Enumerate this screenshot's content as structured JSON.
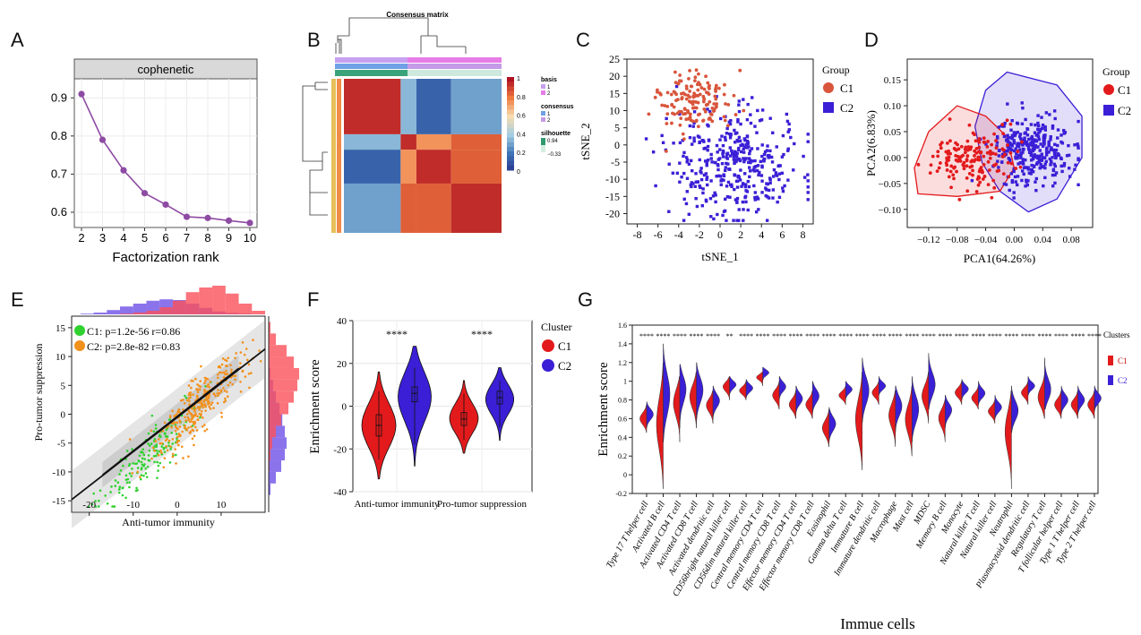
{
  "panel_labels": [
    "A",
    "B",
    "C",
    "D",
    "E",
    "F",
    "G"
  ],
  "chart_data": [
    {
      "panel": "A",
      "type": "line",
      "strip_label": "cophenetic",
      "xlabel": "Factorization rank",
      "x": [
        2,
        3,
        4,
        5,
        6,
        7,
        8,
        9,
        10
      ],
      "values": [
        0.91,
        0.79,
        0.71,
        0.65,
        0.62,
        0.588,
        0.585,
        0.578,
        0.572
      ],
      "xlim": [
        2,
        10
      ],
      "ylim": [
        0.56,
        0.95
      ],
      "yticks": [
        0.6,
        0.7,
        0.8,
        0.9
      ],
      "yticklabels": [
        "0.6",
        "0.7",
        "0.8",
        "0.9"
      ],
      "color": "#8e4ba3",
      "grid": true
    },
    {
      "panel": "B",
      "type": "heatmap",
      "title": "Consensus matrix",
      "legend": {
        "colorbar_ticks": [
          "1",
          "0.8",
          "0.6",
          "0.4",
          "0.2",
          "0"
        ],
        "basis_title": "basis",
        "basis_items": [
          "1",
          "2"
        ],
        "consensus_title": "consensus",
        "consensus_items": [
          "1",
          "2"
        ],
        "silhouette_title": "silhouette",
        "silhouette_values": [
          "0.94",
          "−0.33"
        ]
      },
      "blocks_rows": [
        0.36,
        0.1,
        0.22,
        0.32
      ],
      "blocks_cols": [
        0.36,
        0.1,
        0.22,
        0.32
      ],
      "matrix": [
        [
          0.95,
          0.35,
          0.15,
          0.3
        ],
        [
          0.35,
          0.95,
          0.75,
          0.85
        ],
        [
          0.15,
          0.75,
          0.95,
          0.85
        ],
        [
          0.3,
          0.85,
          0.85,
          0.95
        ]
      ]
    },
    {
      "panel": "C",
      "type": "scatter",
      "xlabel": "tSNE_1",
      "ylabel": "tSNE_2",
      "xlim": [
        -9,
        9
      ],
      "ylim": [
        -23,
        25
      ],
      "xticks": [
        -8,
        -6,
        -4,
        -2,
        0,
        2,
        4,
        6,
        8
      ],
      "yticks": [
        -20,
        -15,
        -10,
        -5,
        0,
        5,
        10,
        15,
        20,
        25
      ],
      "legend_title": "Group",
      "series": [
        {
          "name": "C1",
          "color": "#d9553b",
          "marker": "circle",
          "center": [
            -2.5,
            13
          ],
          "spread": [
            1.8,
            4.5
          ],
          "n": 150
        },
        {
          "name": "C2",
          "color": "#3a1fd6",
          "marker": "square",
          "center": [
            1.5,
            -6
          ],
          "spread": [
            3.2,
            7.5
          ],
          "n": 380
        }
      ]
    },
    {
      "panel": "D",
      "type": "scatter",
      "xlabel": "PCA1(64.26%)",
      "ylabel": "PCA2(6.83%)",
      "xlim": [
        -0.15,
        0.11
      ],
      "ylim": [
        -0.135,
        0.19
      ],
      "xticks": [
        -0.12,
        -0.08,
        -0.04,
        0.0,
        0.04,
        0.08
      ],
      "xticklabels": [
        "−0.12",
        "−0.08",
        "−0.04",
        "0.00",
        "0.04",
        "0.08"
      ],
      "yticks": [
        -0.1,
        -0.05,
        0.0,
        0.05,
        0.1,
        0.15
      ],
      "yticklabels": [
        "−0.10",
        "−0.05",
        "0.00",
        "0.05",
        "0.10",
        "0.15"
      ],
      "legend_title": "Group",
      "series": [
        {
          "name": "C1",
          "color": "#e31a1c",
          "marker": "circle",
          "center": [
            -0.06,
            0.0
          ],
          "spread": [
            0.035,
            0.035
          ],
          "n": 160
        },
        {
          "name": "C2",
          "color": "#3a1fd6",
          "marker": "square",
          "center": [
            0.025,
            0.01
          ],
          "spread": [
            0.035,
            0.04
          ],
          "n": 320
        }
      ]
    },
    {
      "panel": "E",
      "type": "scatter",
      "xlabel": "Anti-tumor immunity",
      "ylabel": "Pro-tumor suppression",
      "xlim": [
        -24,
        20
      ],
      "ylim": [
        -17,
        17
      ],
      "xticks": [
        -20,
        -10,
        0,
        10
      ],
      "yticks": [
        -15,
        -10,
        -5,
        0,
        5,
        10,
        15
      ],
      "annotations": [
        "C1: p=1.2e-56 r=0.86",
        "C2: p=2.8e-82 r=0.83"
      ],
      "series": [
        {
          "name": "C1",
          "color": "#2fd12f",
          "x_mean": -6,
          "x_sd": 5.5,
          "slope": 0.75,
          "noise": 2.2,
          "n": 170
        },
        {
          "name": "C2",
          "color": "#f2901c",
          "x_mean": 5,
          "x_sd": 5,
          "slope": 0.75,
          "noise": 2.4,
          "n": 320
        }
      ],
      "fit_line": {
        "x": [
          -24,
          20
        ],
        "y": [
          -14.8,
          11.3
        ]
      },
      "top_hist": {
        "bins": [
          -22,
          -19,
          -16,
          -13,
          -10,
          -7,
          -4,
          -1,
          2,
          5,
          8,
          11,
          14,
          17
        ],
        "C1": [
          0.02,
          0.05,
          0.12,
          0.22,
          0.3,
          0.38,
          0.42,
          0.4,
          0.3,
          0.18,
          0.08,
          0.04,
          0.02,
          0.0
        ],
        "C2": [
          0.0,
          0.0,
          0.0,
          0.02,
          0.05,
          0.1,
          0.2,
          0.38,
          0.62,
          0.75,
          0.8,
          0.58,
          0.3,
          0.1
        ]
      },
      "right_hist": {
        "bins": [
          -16,
          -14,
          -12,
          -10,
          -8,
          -6,
          -4,
          -2,
          0,
          2,
          4,
          6,
          8,
          10,
          12,
          14
        ],
        "C1": [
          0.0,
          0.05,
          0.2,
          0.35,
          0.45,
          0.5,
          0.45,
          0.38,
          0.3,
          0.2,
          0.12,
          0.05,
          0.02,
          0.0,
          0.0,
          0.0
        ],
        "C2": [
          0.0,
          0.0,
          0.0,
          0.02,
          0.05,
          0.1,
          0.2,
          0.35,
          0.55,
          0.7,
          0.8,
          0.85,
          0.7,
          0.5,
          0.2,
          0.05
        ]
      }
    },
    {
      "panel": "F",
      "type": "violin",
      "ylabel": "Enrichment score",
      "ylim": [
        -40,
        40
      ],
      "yticks": [
        -40,
        -20,
        0,
        20,
        40
      ],
      "categories": [
        "Anti-tumor immunity",
        "Pro-tumor suppression"
      ],
      "significance": [
        "****",
        "****"
      ],
      "legend_title": "Cluster",
      "series": [
        {
          "name": "C1",
          "color": "#e31a1c",
          "medians": [
            -9,
            -6
          ],
          "q1": [
            -14,
            -9
          ],
          "q3": [
            -4,
            -3
          ],
          "min": [
            -34,
            -22
          ],
          "max": [
            16,
            12
          ]
        },
        {
          "name": "C2",
          "color": "#3a1fd6",
          "medians": [
            6,
            4
          ],
          "q1": [
            2,
            1
          ],
          "q3": [
            9,
            7
          ],
          "min": [
            -28,
            -16
          ],
          "max": [
            28,
            18
          ]
        }
      ]
    },
    {
      "panel": "G",
      "type": "violin",
      "xlabel": "Immue cells",
      "ylabel": "Enrichment score",
      "ylim": [
        -0.2,
        1.6
      ],
      "yticks": [
        -0.2,
        0,
        0.2,
        0.4,
        0.6,
        0.8,
        1.0,
        1.2,
        1.4,
        1.6
      ],
      "legend_title": "Clusters",
      "legend_items": [
        "C1",
        "C2"
      ],
      "categories": [
        "Type 17 T helper cell",
        "Activated B cell",
        "Activated CD4 T cell",
        "Activated CD8 T cell",
        "Activated dendritic cell",
        "CD56bright natural killer cell",
        "CD56dim natural killer cell",
        "Central memory CD4 T cell",
        "Central memory CD8 T cell",
        "Effector memory CD4 T cell",
        "Effector memory CD8 T cell",
        "Eosinophil",
        "Gamma delta T cell",
        "Immature B cell",
        "Immature dendritic cell",
        "Macrophage",
        "Mast cell",
        "MDSC",
        "Memory B cell",
        "Monocyte",
        "Natural killer T cell",
        "Natural killer cell",
        "Neutrophil",
        "Plasmacytoid dendritic cell",
        "Regulatory T cell",
        "T follicular helper cell",
        "Type 1 T helper cell",
        "Type 2 T helper cell"
      ],
      "significance": [
        "****",
        "****",
        "****",
        "****",
        "****",
        "**",
        "****",
        "****",
        "****",
        "****",
        "****",
        "****",
        "****",
        "****",
        "****",
        "****",
        "****",
        "****",
        "****",
        "****",
        "****",
        "****",
        "****",
        "****",
        "****",
        "****",
        "****",
        "****"
      ],
      "series": [
        {
          "name": "C1",
          "color": "#e31a1c",
          "medians": [
            0.6,
            0.55,
            0.8,
            0.85,
            0.75,
            0.95,
            0.9,
            1.05,
            0.85,
            0.75,
            0.75,
            0.5,
            0.85,
            0.6,
            0.88,
            0.65,
            0.6,
            0.85,
            0.62,
            0.88,
            0.82,
            0.68,
            0.5,
            0.88,
            0.82,
            0.75,
            0.75,
            0.75
          ],
          "min": [
            0.45,
            -0.15,
            0.35,
            0.5,
            0.55,
            0.8,
            0.8,
            0.95,
            0.7,
            0.6,
            0.6,
            0.3,
            0.75,
            0.05,
            0.75,
            0.3,
            0.2,
            0.55,
            0.35,
            0.75,
            0.7,
            0.55,
            -0.15,
            0.75,
            0.6,
            0.6,
            0.6,
            0.6
          ],
          "max": [
            0.75,
            1.2,
            1.05,
            1.1,
            0.9,
            1.05,
            1.0,
            1.1,
            1.0,
            0.9,
            0.9,
            0.7,
            0.95,
            1.1,
            1.0,
            0.9,
            0.95,
            1.1,
            0.8,
            1.0,
            0.95,
            0.8,
            0.9,
            1.0,
            1.1,
            0.9,
            0.9,
            0.9
          ]
        },
        {
          "name": "C2",
          "color": "#3a1fd6",
          "medians": [
            0.65,
            0.85,
            0.95,
            0.92,
            0.8,
            0.97,
            0.93,
            1.1,
            0.95,
            0.82,
            0.85,
            0.55,
            0.92,
            0.9,
            0.95,
            0.75,
            0.7,
            0.95,
            0.7,
            0.92,
            0.87,
            0.72,
            0.68,
            0.95,
            0.88,
            0.8,
            0.8,
            0.82
          ],
          "min": [
            0.5,
            0.35,
            0.5,
            0.55,
            0.6,
            0.85,
            0.82,
            1.0,
            0.8,
            0.65,
            0.65,
            0.35,
            0.8,
            0.55,
            0.85,
            0.45,
            0.35,
            0.7,
            0.5,
            0.8,
            0.75,
            0.6,
            0.45,
            0.85,
            0.7,
            0.65,
            0.65,
            0.68
          ],
          "max": [
            0.78,
            1.4,
            1.18,
            1.2,
            0.95,
            1.05,
            1.02,
            1.15,
            1.05,
            0.95,
            1.0,
            0.72,
            1.0,
            1.25,
            1.05,
            0.95,
            1.05,
            1.3,
            0.85,
            1.02,
            1.0,
            0.85,
            0.95,
            1.05,
            1.25,
            0.95,
            0.95,
            0.95
          ]
        }
      ]
    }
  ]
}
